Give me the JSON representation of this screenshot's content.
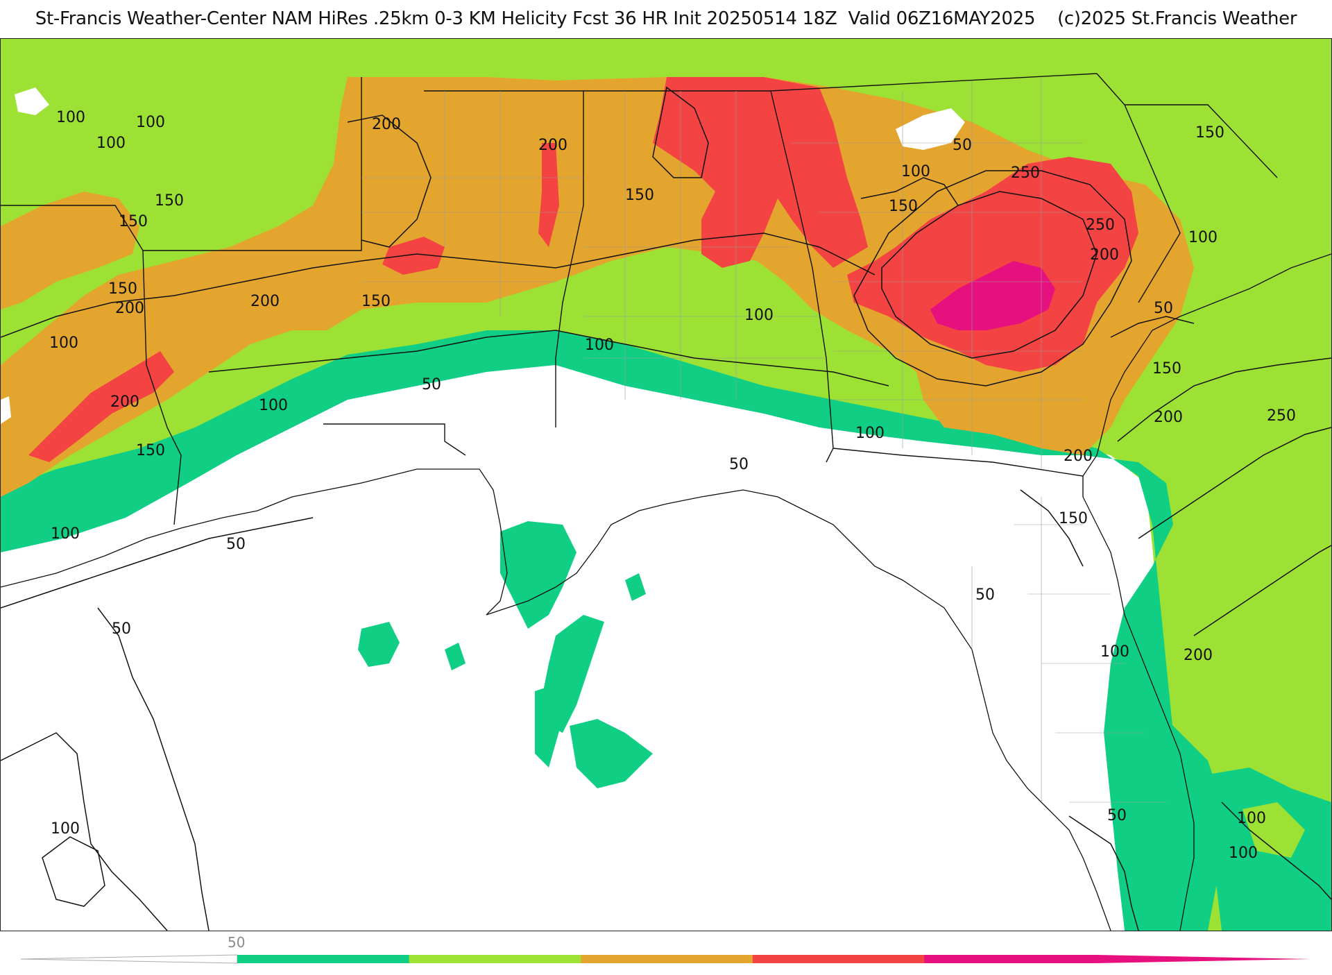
{
  "title": "St-Francis Weather-Center NAM HiRes .25km 0-3 KM Helicity Fcst 36 HR Init 20250514 18Z  Valid 06Z16MAY2025    (c)2025 St.Francis Weather",
  "colors": {
    "none": "#ffffff",
    "level_50": "#10cf85",
    "level_100": "#9ee135",
    "level_150": "#e4a52e",
    "level_200": "#f44343",
    "level_250": "#e6107e",
    "boundary": "#111111",
    "county": "#9a9a9a"
  },
  "colorbar": {
    "tick_label": "50",
    "segments": [
      "#10cf85",
      "#9ee135",
      "#e4a52e",
      "#f44343",
      "#e6107e"
    ]
  },
  "contour_labels": [
    {
      "text": "100"
    },
    {
      "text": "100"
    },
    {
      "text": "100"
    },
    {
      "text": "150"
    },
    {
      "text": "150"
    },
    {
      "text": "150"
    },
    {
      "text": "200"
    },
    {
      "text": "100"
    },
    {
      "text": "200"
    },
    {
      "text": "150"
    },
    {
      "text": "200"
    },
    {
      "text": "200"
    },
    {
      "text": "150"
    },
    {
      "text": "200"
    },
    {
      "text": "150"
    },
    {
      "text": "100"
    },
    {
      "text": "50"
    },
    {
      "text": "100"
    },
    {
      "text": "100"
    },
    {
      "text": "50"
    },
    {
      "text": "150"
    },
    {
      "text": "100"
    },
    {
      "text": "250"
    },
    {
      "text": "250"
    },
    {
      "text": "200"
    },
    {
      "text": "150"
    },
    {
      "text": "100"
    },
    {
      "text": "50"
    },
    {
      "text": "150"
    },
    {
      "text": "200"
    },
    {
      "text": "250"
    },
    {
      "text": "200"
    },
    {
      "text": "150"
    },
    {
      "text": "100"
    },
    {
      "text": "50"
    },
    {
      "text": "50"
    },
    {
      "text": "100"
    },
    {
      "text": "50"
    },
    {
      "text": "50"
    },
    {
      "text": "200"
    },
    {
      "text": "100"
    },
    {
      "text": "50"
    },
    {
      "text": "100"
    },
    {
      "text": "100"
    },
    {
      "text": "100"
    },
    {
      "text": "50"
    }
  ]
}
